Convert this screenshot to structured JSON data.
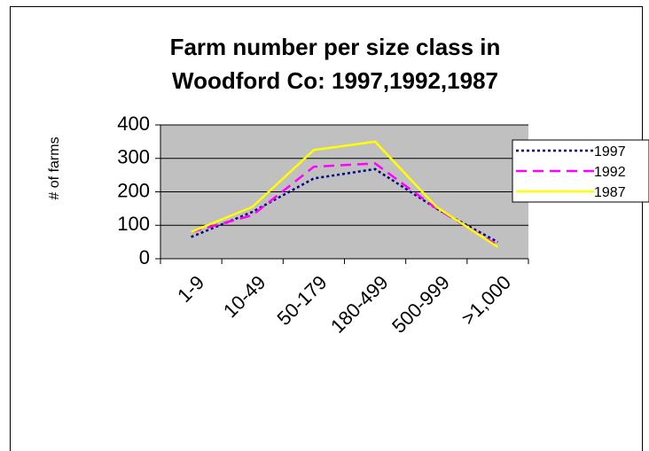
{
  "chart_data": {
    "type": "line",
    "title": [
      "Farm number per size class in",
      "Woodford Co: 1997,1992,1987"
    ],
    "y_label": "# of farms",
    "categories": [
      "1-9",
      "10-49",
      "50-179",
      "180-499",
      "500-999",
      ">1,000"
    ],
    "series": [
      {
        "name": "1997",
        "color": "#000080",
        "line_style": "dotted",
        "values": [
          65,
          140,
          240,
          268,
          150,
          50
        ]
      },
      {
        "name": "1992",
        "color": "#ff00ff",
        "line_style": "dashed",
        "values": [
          80,
          130,
          275,
          285,
          150,
          40
        ]
      },
      {
        "name": "1987",
        "color": "#ffff00",
        "line_style": "solid",
        "values": [
          80,
          155,
          325,
          350,
          155,
          35
        ]
      }
    ],
    "ylim": [
      0,
      400
    ],
    "yticks": [
      0,
      100,
      200,
      300,
      400
    ],
    "grid": true,
    "legend": "right",
    "plot_background": "#c0c0c0"
  }
}
